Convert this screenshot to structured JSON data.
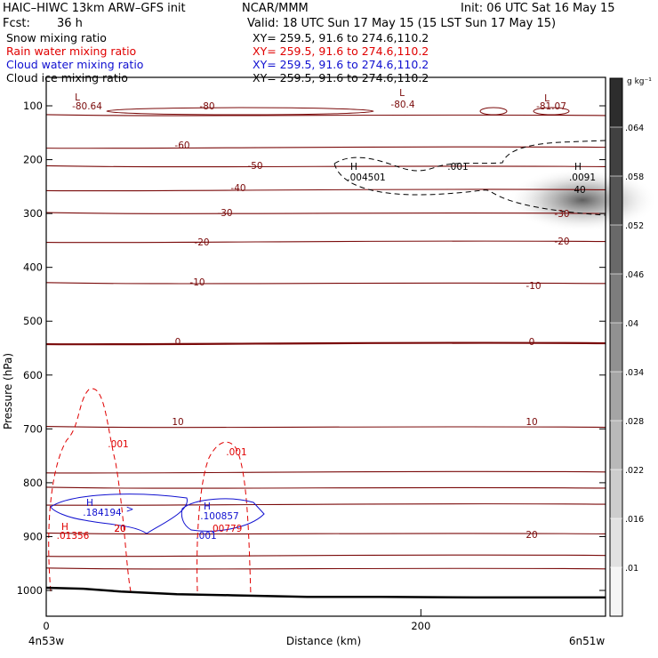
{
  "header": {
    "model": "HAIC–HIWC 13km ARW–GFS init",
    "org": "NCAR/MMM",
    "init": "Init: 06 UTC Sat 16 May 15",
    "fcst_label": "Fcst:",
    "fcst_value": "36 h",
    "valid": "Valid: 18 UTC Sun 17 May 15 (15 LST Sun 17 May 15)"
  },
  "legend": [
    {
      "label": "Snow mixing ratio",
      "xy": "XY= 259.5, 91.6 to 274.6,110.2",
      "color": "#000000"
    },
    {
      "label": "Rain water mixing ratio",
      "xy": "XY= 259.5, 91.6 to 274.6,110.2",
      "color": "#e00000"
    },
    {
      "label": "Cloud water mixing ratio",
      "xy": "XY= 259.5, 91.6 to 274.6,110.2",
      "color": "#1010d0"
    },
    {
      "label": "Cloud ice mixing ratio",
      "xy": "XY= 259.5, 91.6 to 274.6,110.2",
      "color": "#000000"
    }
  ],
  "chart_data": {
    "type": "cross-section",
    "xlabel": "Distance (km)",
    "ylabel": "Pressure (hPa)",
    "xlim": [
      0,
      300
    ],
    "ylim": [
      1050,
      60
    ],
    "x_ticks": [
      0,
      200
    ],
    "y_ticks": [
      100,
      200,
      300,
      400,
      500,
      600,
      700,
      800,
      900,
      1000
    ],
    "x_endpoints": {
      "left": "4n53w",
      "right": "6n51w"
    },
    "colorbar": {
      "unit": "g kg⁻¹",
      "ticks": [
        ".01",
        ".016",
        ".022",
        ".028",
        ".034",
        ".04",
        ".046",
        ".052",
        ".058",
        ".064"
      ]
    },
    "temperature_lines": [
      {
        "label": "-80.64",
        "p": 116,
        "kind": "L"
      },
      {
        "label": "-80",
        "p": 118
      },
      {
        "label": "-80.4",
        "p": 110,
        "kind": "L"
      },
      {
        "label": "-81.07",
        "p": 116,
        "kind": "L"
      },
      {
        "label": "-60",
        "p": 177
      },
      {
        "label": "-50",
        "p": 213
      },
      {
        "label": "-40",
        "p": 256
      },
      {
        "label": "-30",
        "p": 300
      },
      {
        "label": "-20",
        "p": 352
      },
      {
        "label": "-10",
        "p": 430
      },
      {
        "label": "0",
        "p": 541
      },
      {
        "label": "10",
        "p": 697
      },
      {
        "label": "20",
        "p": 895
      }
    ],
    "cloud_ice": [
      {
        "label": ".001",
        "x": 235,
        "p": 213
      },
      {
        "label": ".004501",
        "x": 176,
        "p": 234,
        "kind": "H"
      },
      {
        "label": ".0091",
        "x": 297,
        "p": 234,
        "kind": "H"
      }
    ],
    "rain_water": [
      {
        "label": ".001",
        "x": 40,
        "p": 734
      },
      {
        "label": ".001",
        "x": 107,
        "p": 787
      },
      {
        "label": ".01356",
        "x": 8,
        "p": 911,
        "kind": "H"
      },
      {
        "label": ".00779",
        "x": 93,
        "p": 880
      }
    ],
    "cloud_water": [
      {
        "label": ".184194",
        "x": 31,
        "p": 857,
        "kind": "H"
      },
      {
        "label": ".100857",
        "x": 95,
        "p": 863,
        "kind": "H"
      },
      {
        "label": ".001",
        "x": 87,
        "p": 908
      }
    ],
    "surface_pressure": {
      "x": [
        0,
        20,
        40,
        70,
        100,
        140,
        180,
        230,
        280,
        300
      ],
      "p": [
        995,
        997,
        1002,
        1007,
        1009,
        1012,
        1012,
        1013,
        1013,
        1013
      ]
    }
  }
}
